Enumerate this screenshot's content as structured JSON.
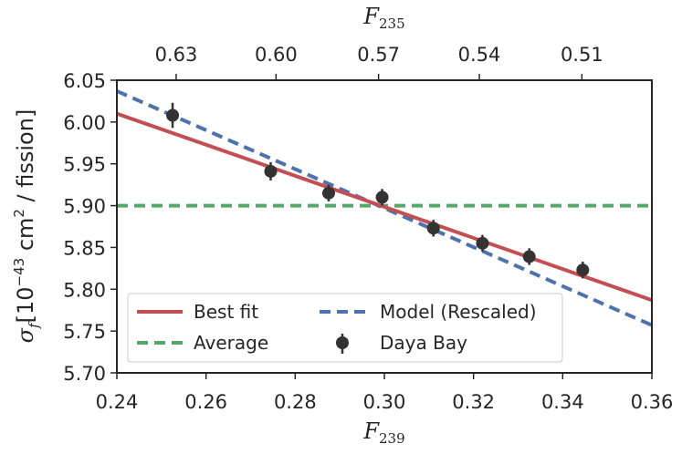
{
  "chart_data": {
    "type": "scatter",
    "title": "",
    "xlabel": {
      "base": "F",
      "sub": "239"
    },
    "top_xlabel": {
      "base": "F",
      "sub": "235"
    },
    "ylabel": {
      "sigma": "σ",
      "sub": "f",
      "open": "[10",
      "exp": "−43",
      "unit": " cm",
      "unit_exp": "2",
      "tail": " / fission]"
    },
    "xlim": [
      0.24,
      0.36
    ],
    "ylim": [
      5.7,
      6.05
    ],
    "xticks": [
      0.24,
      0.26,
      0.28,
      0.3,
      0.32,
      0.34,
      0.36
    ],
    "xtick_labels": [
      "0.24",
      "0.26",
      "0.28",
      "0.30",
      "0.32",
      "0.34",
      "0.36"
    ],
    "yticks": [
      5.7,
      5.75,
      5.8,
      5.85,
      5.9,
      5.95,
      6.0,
      6.05
    ],
    "ytick_labels": [
      "5.70",
      "5.75",
      "5.80",
      "5.85",
      "5.90",
      "5.95",
      "6.00",
      "6.05"
    ],
    "top_xticks_at_f239": [
      0.2533,
      0.2757,
      0.2987,
      0.3213,
      0.3443
    ],
    "top_xtick_labels": [
      "0.63",
      "0.60",
      "0.57",
      "0.54",
      "0.51"
    ],
    "series": [
      {
        "name": "Daya Bay",
        "kind": "errorbar",
        "color": "#333333",
        "x": [
          0.2525,
          0.2745,
          0.2875,
          0.2995,
          0.311,
          0.322,
          0.3325,
          0.3445
        ],
        "y": [
          6.008,
          5.941,
          5.915,
          5.91,
          5.873,
          5.855,
          5.839,
          5.823
        ],
        "yerr": [
          0.015,
          0.011,
          0.01,
          0.01,
          0.01,
          0.01,
          0.01,
          0.01
        ]
      },
      {
        "name": "Best fit",
        "kind": "line",
        "style": "solid",
        "color": "#c44e52",
        "x": [
          0.24,
          0.36
        ],
        "y": [
          6.01,
          5.787
        ]
      },
      {
        "name": "Model (Rescaled)",
        "kind": "line",
        "style": "dashed",
        "color": "#4c72b0",
        "x": [
          0.24,
          0.36
        ],
        "y": [
          6.037,
          5.757
        ]
      },
      {
        "name": "Average",
        "kind": "line",
        "style": "dashed",
        "color": "#55a868",
        "x": [
          0.24,
          0.36
        ],
        "y": [
          5.9,
          5.9
        ]
      }
    ],
    "legend": {
      "position": "lower-left",
      "entries": [
        {
          "label": "Best fit",
          "series": "Best fit"
        },
        {
          "label": "Model (Rescaled)",
          "series": "Model (Rescaled)"
        },
        {
          "label": "Average",
          "series": "Average"
        },
        {
          "label": "Daya Bay",
          "series": "Daya Bay"
        }
      ]
    },
    "grid": false
  }
}
